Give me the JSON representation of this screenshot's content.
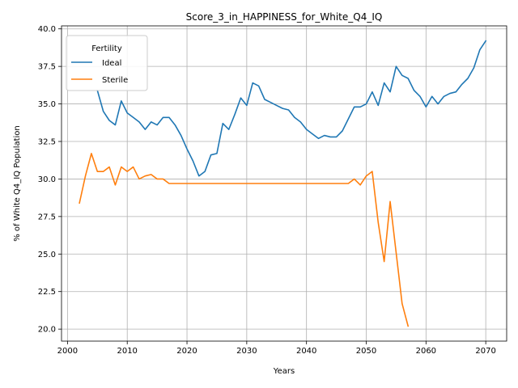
{
  "chart_data": {
    "type": "line",
    "title": "Score_3_in_HAPPINESS_for_White_Q4_IQ",
    "xlabel": "Years",
    "ylabel": "% of White Q4_IQ Population",
    "xlim": [
      1999,
      2073.5
    ],
    "ylim": [
      19.2,
      40.2
    ],
    "xticks": [
      2000,
      2010,
      2020,
      2030,
      2040,
      2050,
      2060,
      2070
    ],
    "yticks": [
      20.0,
      22.5,
      25.0,
      27.5,
      30.0,
      32.5,
      35.0,
      37.5,
      40.0
    ],
    "grid": true,
    "legend": {
      "title": "Fertility",
      "placement": "top-left"
    },
    "series": [
      {
        "name": "Ideal",
        "color": "#1f77b4",
        "x": [
          2005,
          2006,
          2007,
          2008,
          2009,
          2010,
          2011,
          2012,
          2013,
          2014,
          2015,
          2016,
          2017,
          2018,
          2019,
          2020,
          2021,
          2022,
          2023,
          2024,
          2025,
          2026,
          2027,
          2028,
          2029,
          2030,
          2031,
          2032,
          2033,
          2034,
          2035,
          2036,
          2037,
          2038,
          2039,
          2040,
          2041,
          2042,
          2043,
          2044,
          2045,
          2046,
          2047,
          2048,
          2049,
          2050,
          2051,
          2052,
          2053,
          2054,
          2055,
          2056,
          2057,
          2058,
          2059,
          2060,
          2061,
          2062,
          2063,
          2064,
          2065,
          2066,
          2067,
          2068,
          2069,
          2070
        ],
        "values": [
          35.9,
          34.5,
          33.9,
          33.6,
          35.2,
          34.4,
          34.1,
          33.8,
          33.3,
          33.8,
          33.6,
          34.1,
          34.1,
          33.6,
          32.9,
          32.0,
          31.2,
          30.2,
          30.5,
          31.6,
          31.7,
          33.7,
          33.3,
          34.3,
          35.4,
          34.9,
          36.4,
          36.2,
          35.3,
          35.1,
          34.9,
          34.7,
          34.6,
          34.1,
          33.8,
          33.3,
          33.0,
          32.7,
          32.9,
          32.8,
          32.8,
          33.2,
          34.0,
          34.8,
          34.8,
          35.0,
          35.8,
          34.9,
          36.4,
          35.8,
          37.5,
          36.9,
          36.7,
          35.9,
          35.5,
          34.8,
          35.5,
          35.0,
          35.5,
          35.7,
          35.8,
          36.3,
          36.7,
          37.4,
          38.6,
          39.2
        ]
      },
      {
        "name": "Sterile",
        "color": "#ff7f0e",
        "x": [
          2002,
          2003,
          2004,
          2005,
          2006,
          2007,
          2008,
          2009,
          2010,
          2011,
          2012,
          2013,
          2014,
          2015,
          2016,
          2017,
          2018,
          2019,
          2020,
          2021,
          2022,
          2023,
          2024,
          2025,
          2026,
          2027,
          2028,
          2029,
          2030,
          2031,
          2032,
          2033,
          2034,
          2035,
          2036,
          2037,
          2038,
          2039,
          2040,
          2041,
          2042,
          2043,
          2044,
          2045,
          2046,
          2047,
          2048,
          2049,
          2050,
          2051,
          2052,
          2053,
          2054,
          2055,
          2056,
          2057
        ],
        "values": [
          28.4,
          30.2,
          31.7,
          30.5,
          30.5,
          30.8,
          29.6,
          30.8,
          30.5,
          30.8,
          30.0,
          30.2,
          30.3,
          30.0,
          30.0,
          29.7,
          29.7,
          29.7,
          29.7,
          29.7,
          29.7,
          29.7,
          29.7,
          29.7,
          29.7,
          29.7,
          29.7,
          29.7,
          29.7,
          29.7,
          29.7,
          29.7,
          29.7,
          29.7,
          29.7,
          29.7,
          29.7,
          29.7,
          29.7,
          29.7,
          29.7,
          29.7,
          29.7,
          29.7,
          29.7,
          29.7,
          30.0,
          29.6,
          30.2,
          30.5,
          27.1,
          24.5,
          28.5,
          25.1,
          21.7,
          20.2
        ]
      }
    ]
  }
}
